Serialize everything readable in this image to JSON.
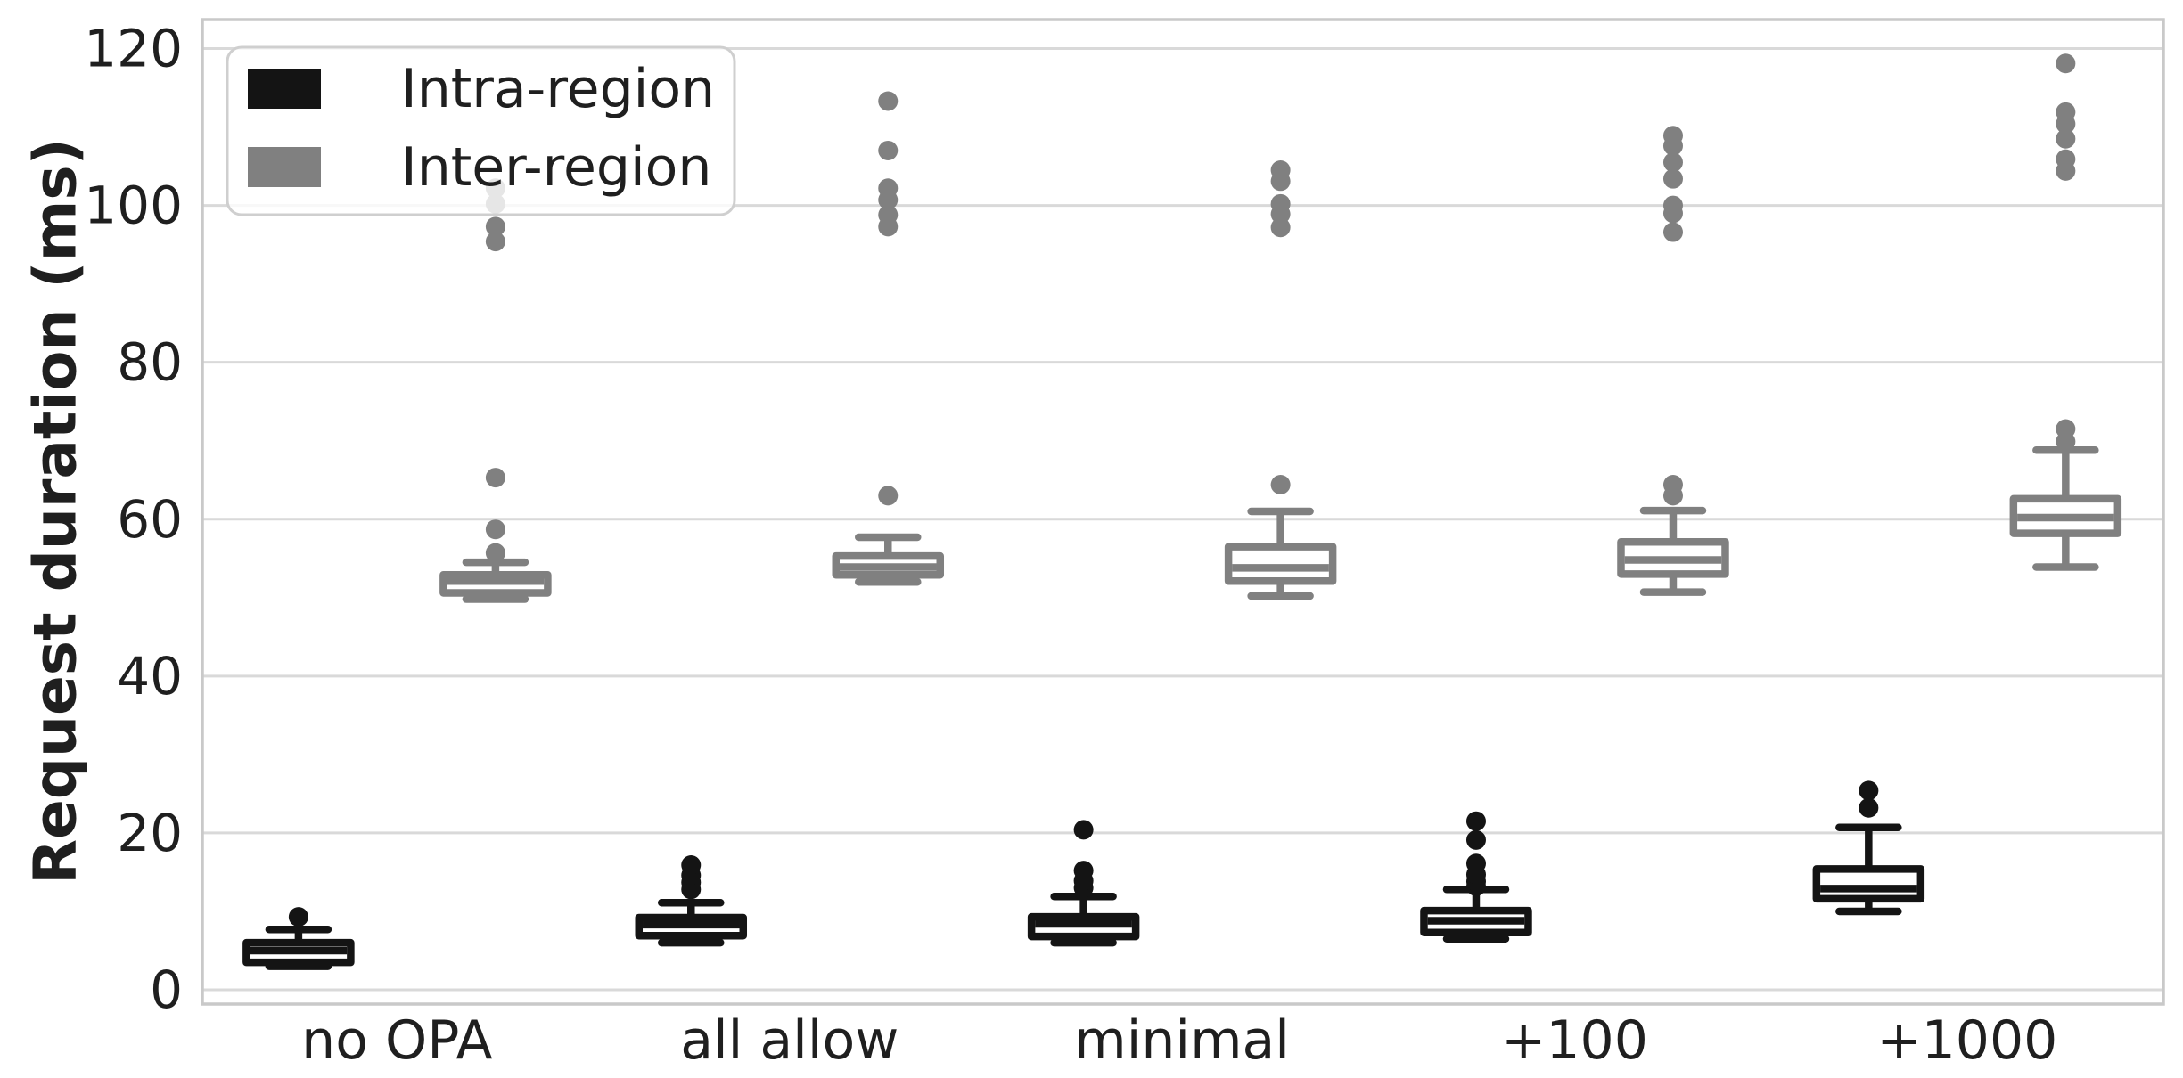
{
  "chart_data": {
    "type": "boxplot",
    "title": "",
    "ylabel": "Request duration (ms)",
    "xlabel": "",
    "categories": [
      "no OPA",
      "all allow",
      "minimal",
      "+100",
      "+1000"
    ],
    "y_ticks": [
      "0",
      "20",
      "40",
      "60",
      "80",
      "100",
      "120"
    ],
    "y_tick_values": [
      0,
      20,
      40,
      60,
      80,
      100,
      120
    ],
    "ylim": [
      -2,
      123
    ],
    "grid": "horizontal",
    "legend": {
      "position": "upper-left",
      "entries": [
        {
          "label": "Intra-region",
          "color": "#141414"
        },
        {
          "label": "Inter-region",
          "color": "#808080"
        }
      ]
    },
    "series": [
      {
        "name": "Intra-region",
        "color": "#141414",
        "boxes": [
          {
            "category": "no OPA",
            "whislo": 3.0,
            "q1": 3.5,
            "med": 5.0,
            "q3": 6.0,
            "whishi": 7.7,
            "fliers": [
              9.3
            ]
          },
          {
            "category": "all allow",
            "whislo": 6.0,
            "q1": 6.9,
            "med": 8.3,
            "q3": 9.2,
            "whishi": 11.1,
            "fliers": [
              12.8,
              13.7,
              14.6,
              15.9
            ]
          },
          {
            "category": "minimal",
            "whislo": 6.0,
            "q1": 6.8,
            "med": 8.4,
            "q3": 9.3,
            "whishi": 11.9,
            "fliers": [
              13.0,
              13.9,
              15.2,
              20.4
            ]
          },
          {
            "category": "+100",
            "whislo": 6.5,
            "q1": 7.3,
            "med": 8.8,
            "q3": 10.1,
            "whishi": 12.8,
            "fliers": [
              13.2,
              13.8,
              14.7,
              16.1,
              19.1,
              21.5
            ]
          },
          {
            "category": "+1000",
            "whislo": 10.0,
            "q1": 11.6,
            "med": 12.9,
            "q3": 15.4,
            "whishi": 20.7,
            "fliers": [
              23.2,
              25.4
            ]
          }
        ]
      },
      {
        "name": "Inter-region",
        "color": "#808080",
        "boxes": [
          {
            "category": "no OPA",
            "whislo": 49.8,
            "q1": 50.6,
            "med": 52.1,
            "q3": 52.9,
            "whishi": 54.5,
            "fliers": [
              55.7,
              58.7,
              65.3,
              95.4,
              97.3,
              100.2,
              102.2
            ]
          },
          {
            "category": "all allow",
            "whislo": 52.0,
            "q1": 52.9,
            "med": 53.9,
            "q3": 55.3,
            "whishi": 57.7,
            "fliers": [
              63.0,
              97.3,
              98.8,
              100.7,
              102.2,
              107.0,
              113.3
            ]
          },
          {
            "category": "minimal",
            "whislo": 50.2,
            "q1": 52.1,
            "med": 53.8,
            "q3": 56.5,
            "whishi": 61.0,
            "fliers": [
              64.4,
              97.2,
              98.9,
              100.2,
              103.1,
              104.5
            ]
          },
          {
            "category": "+100",
            "whislo": 50.7,
            "q1": 53.0,
            "med": 54.8,
            "q3": 57.1,
            "whishi": 61.1,
            "fliers": [
              63.0,
              64.4,
              96.6,
              99.0,
              100.0,
              103.4,
              105.5,
              107.6,
              108.9
            ]
          },
          {
            "category": "+1000",
            "whislo": 53.9,
            "q1": 58.2,
            "med": 60.2,
            "q3": 62.6,
            "whishi": 68.8,
            "fliers": [
              69.9,
              71.5,
              104.4,
              105.9,
              108.5,
              110.4,
              111.9,
              118.1
            ]
          }
        ]
      }
    ]
  },
  "colors": {
    "background": "#ffffff",
    "gridline": "#d9d9d9",
    "spine": "#c9c9c9",
    "text": "#1f1f1f",
    "box_fill": "#ffffff",
    "legend_border": "#cfcfcf",
    "legend_background": "rgba(255,255,255,0.8)"
  }
}
